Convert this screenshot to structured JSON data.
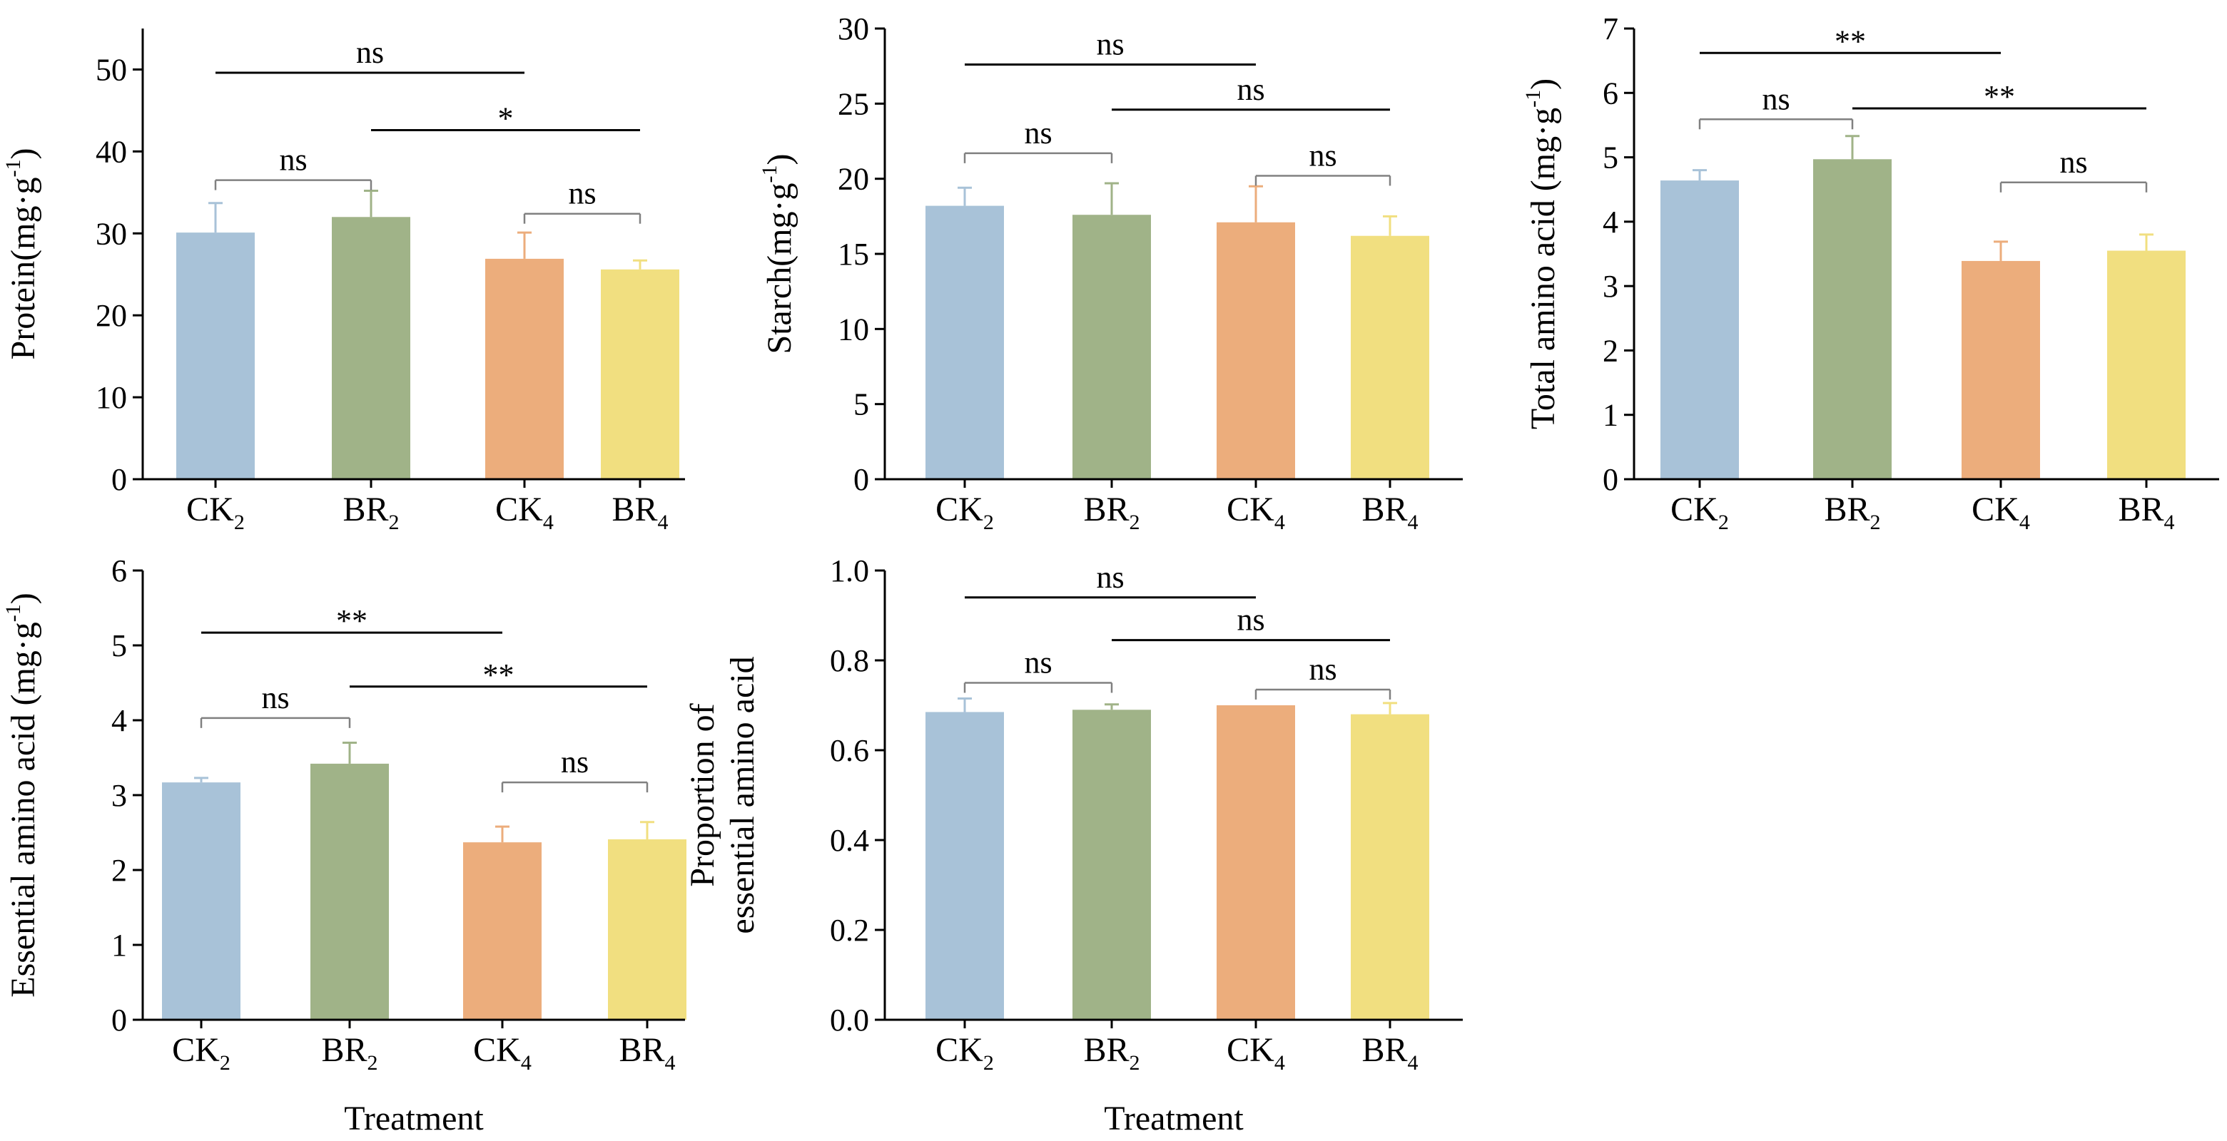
{
  "colors": {
    "bars": [
      "#a8c2d8",
      "#a0b388",
      "#ecad7c",
      "#f1df80"
    ],
    "errorbars": [
      "#a8c2d8",
      "#a0b388",
      "#ecad7c",
      "#f1df80"
    ],
    "axis": "#000000",
    "bracket_dark": "#000000",
    "bracket_light": "#808080"
  },
  "chart_data": [
    {
      "type": "bar",
      "categories": [
        {
          "base": "CK",
          "sub": "2"
        },
        {
          "base": "BR",
          "sub": "2"
        },
        {
          "base": "CK",
          "sub": "4"
        },
        {
          "base": "BR",
          "sub": "4"
        }
      ],
      "values": [
        30.1,
        32.0,
        26.9,
        25.6
      ],
      "errors": [
        3.6,
        3.2,
        3.2,
        1.1
      ],
      "ylabel": {
        "main": "Protein(mg·g",
        "sup": "-1",
        "end": ")"
      },
      "xlabel": "",
      "ylim": [
        0,
        55
      ],
      "yticks": [
        "0",
        "10",
        "20",
        "30",
        "40",
        "50"
      ],
      "brackets": [
        {
          "from": 0,
          "to": 2,
          "y": 49.6,
          "label": "ns",
          "tone": "dark",
          "drop": false
        },
        {
          "from": 1,
          "to": 3,
          "y": 42.6,
          "label": "*",
          "tone": "dark",
          "drop": false
        },
        {
          "from": 0,
          "to": 1,
          "y": 36.5,
          "label": "ns",
          "tone": "light",
          "drop": true
        },
        {
          "from": 2,
          "to": 3,
          "y": 32.4,
          "label": "ns",
          "tone": "light",
          "drop": true
        }
      ]
    },
    {
      "type": "bar",
      "categories": [
        {
          "base": "CK",
          "sub": "2"
        },
        {
          "base": "BR",
          "sub": "2"
        },
        {
          "base": "CK",
          "sub": "4"
        },
        {
          "base": "BR",
          "sub": "4"
        }
      ],
      "values": [
        18.2,
        17.6,
        17.1,
        16.2
      ],
      "errors": [
        1.2,
        2.1,
        2.4,
        1.3
      ],
      "ylabel": {
        "main": "Starch(mg·g",
        "sup": "-1",
        "end": ")"
      },
      "xlabel": "",
      "ylim": [
        0,
        30
      ],
      "yticks": [
        "0",
        "5",
        "10",
        "15",
        "20",
        "25",
        "30"
      ],
      "brackets": [
        {
          "from": 0,
          "to": 2,
          "y": 27.6,
          "label": "ns",
          "tone": "dark",
          "drop": false
        },
        {
          "from": 1,
          "to": 3,
          "y": 24.6,
          "label": "ns",
          "tone": "dark",
          "drop": false
        },
        {
          "from": 0,
          "to": 1,
          "y": 21.7,
          "label": "ns",
          "tone": "light",
          "drop": true
        },
        {
          "from": 2,
          "to": 3,
          "y": 20.2,
          "label": "ns",
          "tone": "light",
          "drop": true
        }
      ]
    },
    {
      "type": "bar",
      "categories": [
        {
          "base": "CK",
          "sub": "2"
        },
        {
          "base": "BR",
          "sub": "2"
        },
        {
          "base": "CK",
          "sub": "4"
        },
        {
          "base": "BR",
          "sub": "4"
        }
      ],
      "values": [
        4.64,
        4.97,
        3.39,
        3.55
      ],
      "errors": [
        0.16,
        0.36,
        0.3,
        0.25
      ],
      "ylabel": {
        "main": "Total amino acid (mg·g",
        "sup": "-1",
        "end": ")"
      },
      "xlabel": "",
      "ylim": [
        0,
        7
      ],
      "yticks": [
        "0",
        "1",
        "2",
        "3",
        "4",
        "5",
        "6",
        "7"
      ],
      "brackets": [
        {
          "from": 0,
          "to": 2,
          "y": 6.62,
          "label": "**",
          "tone": "dark",
          "drop": false
        },
        {
          "from": 1,
          "to": 3,
          "y": 5.76,
          "label": "**",
          "tone": "dark",
          "drop": false
        },
        {
          "from": 0,
          "to": 1,
          "y": 5.59,
          "label": "ns",
          "tone": "light",
          "drop": true
        },
        {
          "from": 2,
          "to": 3,
          "y": 4.61,
          "label": "ns",
          "tone": "light",
          "drop": true
        }
      ]
    },
    {
      "type": "bar",
      "categories": [
        {
          "base": "CK",
          "sub": "2"
        },
        {
          "base": "BR",
          "sub": "2"
        },
        {
          "base": "CK",
          "sub": "4"
        },
        {
          "base": "BR",
          "sub": "4"
        }
      ],
      "values": [
        3.17,
        3.42,
        2.37,
        2.41
      ],
      "errors": [
        0.06,
        0.28,
        0.21,
        0.23
      ],
      "ylabel": {
        "main": "Essential amino acid (mg·g",
        "sup": "-1",
        "end": ")"
      },
      "xlabel": "Treatment",
      "ylim": [
        0,
        6
      ],
      "yticks": [
        "0",
        "1",
        "2",
        "3",
        "4",
        "5",
        "6"
      ],
      "brackets": [
        {
          "from": 0,
          "to": 2,
          "y": 5.17,
          "label": "**",
          "tone": "dark",
          "drop": false
        },
        {
          "from": 1,
          "to": 3,
          "y": 4.45,
          "label": "**",
          "tone": "dark",
          "drop": false
        },
        {
          "from": 0,
          "to": 1,
          "y": 4.03,
          "label": "ns",
          "tone": "light",
          "drop": true
        },
        {
          "from": 2,
          "to": 3,
          "y": 3.17,
          "label": "ns",
          "tone": "light",
          "drop": true
        }
      ]
    },
    {
      "type": "bar",
      "categories": [
        {
          "base": "CK",
          "sub": "2"
        },
        {
          "base": "BR",
          "sub": "2"
        },
        {
          "base": "CK",
          "sub": "4"
        },
        {
          "base": "BR",
          "sub": "4"
        }
      ],
      "values": [
        0.685,
        0.69,
        0.7,
        0.68
      ],
      "errors": [
        0.03,
        0.012,
        0.0,
        0.025
      ],
      "ylabel": {
        "main": "Proportion of",
        "main2": "essential amino acid"
      },
      "xlabel": "Treatment",
      "ylim": [
        0,
        1.0
      ],
      "yticks": [
        "0.0",
        "0.2",
        "0.4",
        "0.6",
        "0.8",
        "1.0"
      ],
      "brackets": [
        {
          "from": 0,
          "to": 2,
          "y": 0.94,
          "label": "ns",
          "tone": "dark",
          "drop": false
        },
        {
          "from": 1,
          "to": 3,
          "y": 0.845,
          "label": "ns",
          "tone": "dark",
          "drop": false
        },
        {
          "from": 0,
          "to": 1,
          "y": 0.75,
          "label": "ns",
          "tone": "light",
          "drop": true
        },
        {
          "from": 2,
          "to": 3,
          "y": 0.735,
          "label": "ns",
          "tone": "light",
          "drop": true
        }
      ]
    }
  ]
}
